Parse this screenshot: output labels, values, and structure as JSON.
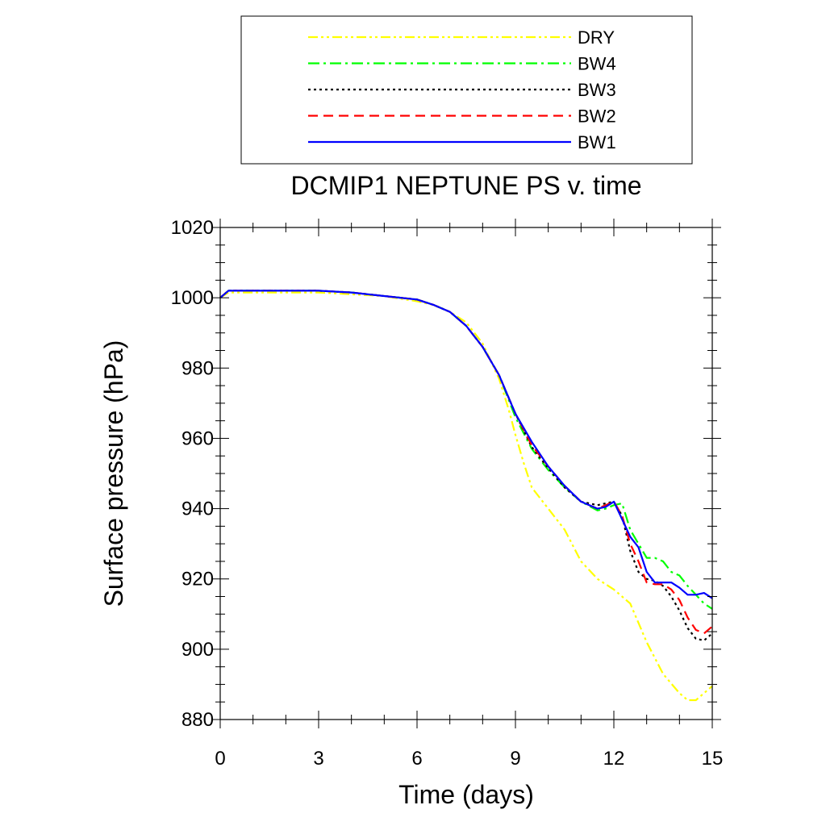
{
  "chart_data": {
    "type": "line",
    "title": "DCMIP1 NEPTUNE PS v. time",
    "xlabel": "Time (days)",
    "ylabel": "Surface pressure (hPa)",
    "xlim": [
      0,
      15
    ],
    "ylim": [
      880,
      1020
    ],
    "xticks": [
      0,
      3,
      6,
      9,
      12,
      15
    ],
    "yticks": [
      880,
      900,
      920,
      940,
      960,
      980,
      1000,
      1020
    ],
    "xtick_labels": [
      "0",
      "3",
      "6",
      "9",
      "12",
      "15"
    ],
    "ytick_labels": [
      "880",
      "900",
      "920",
      "940",
      "960",
      "980",
      "1000",
      "1020"
    ],
    "grid": false,
    "legend_position": "top",
    "series": [
      {
        "name": "DRY",
        "color": "#ffff00",
        "dash": "dash-dot-dot",
        "x": [
          0,
          0.25,
          1,
          2,
          3,
          4,
          5,
          6,
          6.5,
          7,
          7.5,
          8,
          8.5,
          8.8,
          9,
          9.25,
          9.5,
          10,
          10.5,
          11,
          11.5,
          12,
          12.5,
          13,
          13.5,
          14,
          14.25,
          14.5,
          14.75,
          15
        ],
        "y": [
          1000,
          1001.5,
          1001.5,
          1001.5,
          1001.5,
          1001,
          1000.5,
          999,
          998,
          996,
          993,
          987,
          977,
          968,
          961,
          953,
          946,
          940,
          934,
          925,
          920,
          917,
          913,
          902,
          893,
          887.5,
          885.5,
          885.5,
          887.5,
          889.5
        ]
      },
      {
        "name": "BW4",
        "color": "#00ff00",
        "dash": "dash-dot",
        "x": [
          0,
          0.25,
          1,
          2,
          3,
          4,
          5,
          6,
          6.5,
          7,
          7.5,
          8,
          8.5,
          9,
          9.5,
          10,
          10.5,
          11,
          11.5,
          11.75,
          12,
          12.25,
          12.5,
          12.75,
          13,
          13.25,
          13.5,
          13.75,
          14,
          14.25,
          14.5,
          14.75,
          15
        ],
        "y": [
          1000,
          1002,
          1002,
          1002,
          1002,
          1001.5,
          1000.5,
          999.5,
          998,
          996,
          992,
          986,
          978,
          966,
          957,
          951,
          946,
          942,
          939.5,
          940,
          941,
          941.5,
          934,
          930,
          926,
          926,
          925,
          922,
          921,
          918,
          915.5,
          913,
          911.5
        ]
      },
      {
        "name": "BW3",
        "color": "#000000",
        "dash": "dot",
        "x": [
          0,
          0.25,
          1,
          2,
          3,
          4,
          5,
          6,
          6.5,
          7,
          7.5,
          8,
          8.5,
          9,
          9.5,
          10,
          10.5,
          11,
          11.5,
          11.75,
          12,
          12.25,
          12.5,
          12.75,
          13,
          13.25,
          13.5,
          13.75,
          14,
          14.25,
          14.5,
          14.75,
          15
        ],
        "y": [
          1000,
          1002,
          1002,
          1002,
          1002,
          1001.5,
          1000.5,
          999.5,
          998,
          996,
          992,
          986,
          978,
          967,
          957.5,
          951.5,
          946,
          942,
          941,
          941.5,
          942,
          938,
          928,
          922,
          920,
          919.5,
          918,
          915,
          911,
          906,
          903,
          902.5,
          904.5
        ]
      },
      {
        "name": "BW2",
        "color": "#ff0000",
        "dash": "dash",
        "x": [
          0,
          0.25,
          1,
          2,
          3,
          4,
          5,
          6,
          6.5,
          7,
          7.5,
          8,
          8.5,
          9,
          9.5,
          10,
          10.5,
          11,
          11.5,
          11.75,
          12,
          12.25,
          12.5,
          12.75,
          13,
          13.25,
          13.5,
          13.75,
          14,
          14.25,
          14.5,
          14.75,
          15
        ],
        "y": [
          1000,
          1002,
          1002,
          1002,
          1002,
          1001.5,
          1000.5,
          999.5,
          998,
          996,
          992,
          986,
          978,
          967,
          958,
          952,
          946.5,
          942,
          940,
          941,
          942,
          938,
          930,
          925,
          919,
          918.5,
          918.5,
          917,
          914,
          909,
          905.5,
          904.5,
          906.5
        ]
      },
      {
        "name": "BW1",
        "color": "#0000ff",
        "dash": "solid",
        "x": [
          0,
          0.25,
          1,
          2,
          3,
          4,
          5,
          6,
          6.5,
          7,
          7.5,
          8,
          8.5,
          9,
          9.5,
          10,
          10.5,
          11,
          11.5,
          11.75,
          12,
          12.25,
          12.5,
          12.75,
          13,
          13.25,
          13.5,
          13.75,
          14,
          14.25,
          14.5,
          14.75,
          15
        ],
        "y": [
          1000,
          1002,
          1002,
          1002,
          1002,
          1001.5,
          1000.5,
          999.5,
          998,
          996,
          992,
          986,
          978,
          967,
          959,
          952,
          946.5,
          942,
          940,
          940.5,
          942,
          937,
          932,
          929,
          922,
          919,
          919,
          919,
          917.5,
          915.5,
          915.5,
          916,
          914.5
        ]
      }
    ]
  }
}
